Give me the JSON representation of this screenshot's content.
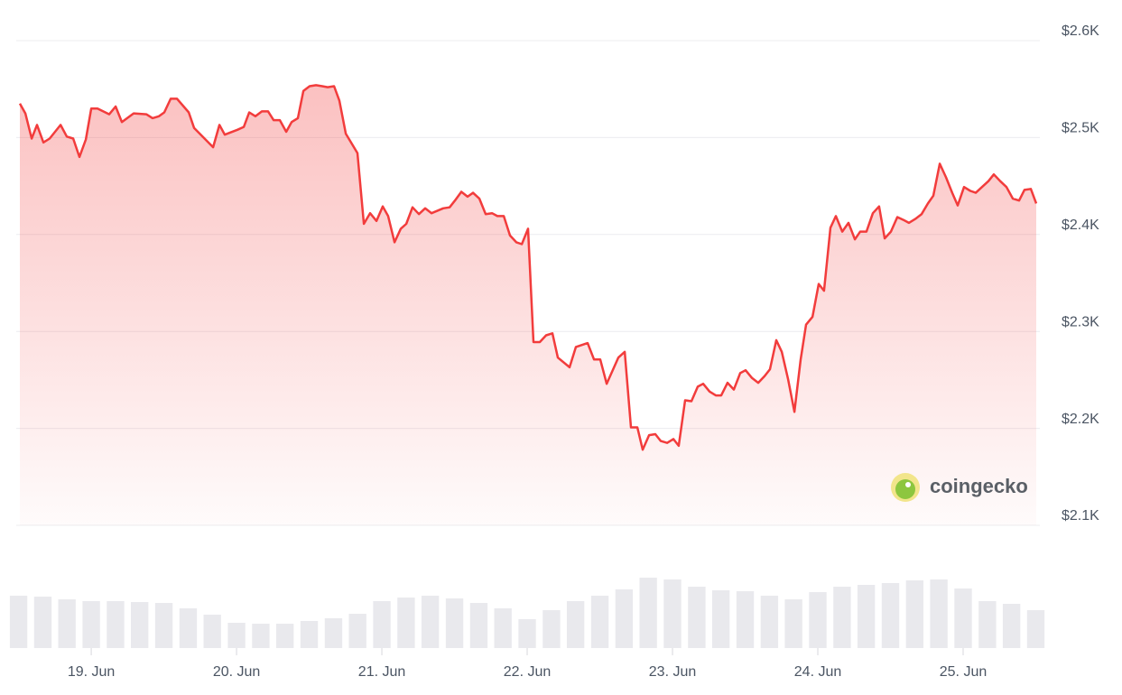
{
  "chart_data": [
    {
      "type": "line",
      "color": "#f23c3c",
      "area": true,
      "grid": true,
      "watermark": "coingecko",
      "xlim": [
        18.484,
        25.528
      ],
      "ylim": [
        2100,
        2600
      ],
      "yticks": [
        {
          "value": 2100,
          "label": "$2.1K"
        },
        {
          "value": 2200,
          "label": "$2.2K"
        },
        {
          "value": 2300,
          "label": "$2.3K"
        },
        {
          "value": 2400,
          "label": "$2.4K"
        },
        {
          "value": 2500,
          "label": "$2.5K"
        },
        {
          "value": 2600,
          "label": "$2.6K"
        }
      ],
      "x": [
        18.509,
        18.547,
        18.59,
        18.627,
        18.671,
        18.714,
        18.789,
        18.832,
        18.876,
        18.919,
        18.963,
        19.0,
        19.043,
        19.124,
        19.168,
        19.211,
        19.292,
        19.379,
        19.422,
        19.466,
        19.503,
        19.547,
        19.59,
        19.671,
        19.708,
        19.839,
        19.882,
        19.919,
        20.006,
        20.05,
        20.087,
        20.13,
        20.174,
        20.217,
        20.255,
        20.298,
        20.342,
        20.379,
        20.422,
        20.46,
        20.503,
        20.547,
        20.59,
        20.627,
        20.671,
        20.708,
        20.752,
        20.832,
        20.876,
        20.919,
        20.963,
        21.006,
        21.043,
        21.087,
        21.13,
        21.168,
        21.211,
        21.255,
        21.298,
        21.342,
        21.422,
        21.466,
        21.503,
        21.547,
        21.59,
        21.627,
        21.671,
        21.714,
        21.758,
        21.795,
        21.839,
        21.882,
        21.925,
        21.963,
        22.006,
        22.043,
        22.087,
        22.13,
        22.174,
        22.211,
        22.292,
        22.335,
        22.416,
        22.46,
        22.503,
        22.547,
        22.627,
        22.671,
        22.714,
        22.758,
        22.795,
        22.839,
        22.882,
        22.919,
        22.963,
        23.006,
        23.043,
        23.087,
        23.13,
        23.174,
        23.211,
        23.255,
        23.298,
        23.335,
        23.379,
        23.422,
        23.466,
        23.503,
        23.547,
        23.59,
        23.634,
        23.671,
        23.714,
        23.752,
        23.795,
        23.839,
        23.882,
        23.919,
        23.963,
        24.006,
        24.043,
        24.087,
        24.124,
        24.168,
        24.211,
        24.255,
        24.292,
        24.335,
        24.379,
        24.422,
        24.46,
        24.503,
        24.547,
        24.59,
        24.627,
        24.671,
        24.714,
        24.758,
        24.795,
        24.839,
        24.882,
        24.925,
        24.963,
        25.006,
        25.05,
        25.087,
        25.13,
        25.174,
        25.211,
        25.255,
        25.298,
        25.342,
        25.385,
        25.422,
        25.466,
        25.503
      ],
      "values": [
        2535,
        2525,
        2499,
        2513,
        2495,
        2499,
        2513,
        2501,
        2499,
        2480,
        2498,
        2530,
        2530,
        2524,
        2532,
        2516,
        2525,
        2524,
        2520,
        2522,
        2526,
        2540,
        2540,
        2526,
        2510,
        2490,
        2513,
        2503,
        2508,
        2511,
        2526,
        2522,
        2527,
        2527,
        2518,
        2518,
        2506,
        2516,
        2520,
        2548,
        2553,
        2554,
        2553,
        2552,
        2553,
        2538,
        2504,
        2484,
        2411,
        2422,
        2414,
        2429,
        2419,
        2392,
        2406,
        2411,
        2428,
        2421,
        2427,
        2422,
        2427,
        2428,
        2435,
        2444,
        2439,
        2443,
        2437,
        2421,
        2422,
        2419,
        2419,
        2399,
        2392,
        2390,
        2406,
        2289,
        2289,
        2296,
        2298,
        2273,
        2263,
        2284,
        2288,
        2271,
        2271,
        2246,
        2273,
        2279,
        2201,
        2201,
        2178,
        2193,
        2194,
        2187,
        2185,
        2189,
        2182,
        2229,
        2228,
        2243,
        2246,
        2238,
        2234,
        2234,
        2247,
        2240,
        2257,
        2260,
        2252,
        2247,
        2254,
        2261,
        2291,
        2279,
        2251,
        2217,
        2271,
        2307,
        2315,
        2349,
        2342,
        2407,
        2419,
        2403,
        2412,
        2395,
        2403,
        2403,
        2422,
        2429,
        2396,
        2403,
        2418,
        2415,
        2412,
        2416,
        2421,
        2432,
        2440,
        2473,
        2459,
        2443,
        2430,
        2449,
        2445,
        2443,
        2449,
        2455,
        2462,
        2455,
        2449,
        2437,
        2435,
        2446,
        2447,
        2432
      ]
    },
    {
      "type": "bar",
      "color": "#e9e9ed",
      "xlim": [
        18.484,
        25.528
      ],
      "ylim": [
        0,
        128
      ],
      "xticks": [
        {
          "value": 19,
          "label": "19. Jun"
        },
        {
          "value": 20,
          "label": "20. Jun"
        },
        {
          "value": 21,
          "label": "21. Jun"
        },
        {
          "value": 22,
          "label": "22. Jun"
        },
        {
          "value": 23,
          "label": "23. Jun"
        },
        {
          "value": 24,
          "label": "24. Jun"
        },
        {
          "value": 25,
          "label": "25. Jun"
        }
      ],
      "x": [
        18.5,
        18.667,
        18.833,
        19.0,
        19.167,
        19.333,
        19.5,
        19.667,
        19.833,
        20.0,
        20.167,
        20.333,
        20.5,
        20.667,
        20.833,
        21.0,
        21.167,
        21.333,
        21.5,
        21.667,
        21.833,
        22.0,
        22.167,
        22.333,
        22.5,
        22.667,
        22.833,
        23.0,
        23.167,
        23.333,
        23.5,
        23.667,
        23.833,
        24.0,
        24.167,
        24.333,
        24.5,
        24.667,
        24.833,
        25.0,
        25.167,
        25.333,
        25.5
      ],
      "values": [
        58,
        57,
        54,
        52,
        52,
        51,
        50,
        44,
        37,
        28,
        27,
        27,
        30,
        33,
        38,
        52,
        56,
        58,
        55,
        50,
        44,
        32,
        42,
        52,
        58,
        65,
        78,
        76,
        68,
        64,
        63,
        58,
        54,
        62,
        68,
        70,
        72,
        75,
        76,
        66,
        52,
        49,
        42
      ]
    }
  ]
}
